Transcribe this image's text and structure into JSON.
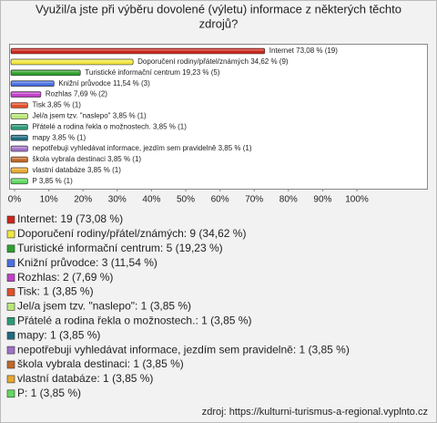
{
  "chart_data": {
    "type": "bar",
    "orientation": "horizontal",
    "title": [
      "Využil/a jste při výběru dovolené (výletu) informace z některých těchto",
      "zdrojů?"
    ],
    "values": [
      73.08,
      34.62,
      19.23,
      11.54,
      7.69,
      3.85,
      3.85,
      3.85,
      3.85,
      3.85,
      3.85,
      3.85,
      3.85
    ],
    "value_labels": [
      "Internet 73,08 % (19)",
      "Doporučení rodiny/přátel/známých 34,62 % (9)",
      "Turistické informační centrum 19,23 % (5)",
      "Knižní průvodce 11,54 % (3)",
      "Rozhlas 7,69 % (2)",
      "Tisk 3,85 % (1)",
      "Jel/a jsem tzv. \"naslepo\" 3,85 % (1)",
      "Přátelé a rodina řekla o možnostech. 3,85 % (1)",
      "mapy 3,85 % (1)",
      "nepotřebuji vyhledávat informace, jezdím sem pravidelně 3,85 % (1)",
      "škola vybrala destinaci 3,85 % (1)",
      "vlastní databáze 3,85 % (1)",
      "P 3,85 % (1)"
    ],
    "legend_labels": [
      "Internet: 19 (73,08 %)",
      "Doporučení rodiny/přátel/známých: 9 (34,62 %)",
      "Turistické informační centrum: 5 (19,23 %)",
      "Knižní průvodce: 3 (11,54 %)",
      "Rozhlas: 2 (7,69 %)",
      "Tisk: 1 (3,85 %)",
      "Jel/a jsem tzv. \"naslepo\": 1 (3,85 %)",
      "Přátelé a rodina řekla o možnostech.: 1 (3,85 %)",
      "mapy: 1 (3,85 %)",
      "nepotřebuji vyhledávat informace, jezdím sem pravidelně: 1 (3,85 %)",
      "škola vybrala destinaci: 1 (3,85 %)",
      "vlastní databáze: 1 (3,85 %)",
      "P: 1 (3,85 %)"
    ],
    "colors": [
      "#c8281e",
      "#f2e640",
      "#2ea02c",
      "#4a6fe0",
      "#c040c8",
      "#e0502a",
      "#b8e878",
      "#2a9a78",
      "#1e6a80",
      "#a070c8",
      "#c0682a",
      "#e8a830",
      "#60d860"
    ],
    "xlim": [
      0,
      100
    ],
    "xticks": [
      {
        "value": 0,
        "label": "0%"
      },
      {
        "value": 10,
        "label": "10%"
      },
      {
        "value": 20,
        "label": "20%"
      },
      {
        "value": 30,
        "label": "30%"
      },
      {
        "value": 40,
        "label": "40%"
      },
      {
        "value": 50,
        "label": "50%"
      },
      {
        "value": 60,
        "label": "60%"
      },
      {
        "value": 70,
        "label": "70%"
      },
      {
        "value": 80,
        "label": "80%"
      },
      {
        "value": 90,
        "label": "90%"
      },
      {
        "value": 100,
        "label": "100%"
      }
    ],
    "source": "zdroj: https://kulturni-turismus-a-regional.vyplnto.cz"
  }
}
